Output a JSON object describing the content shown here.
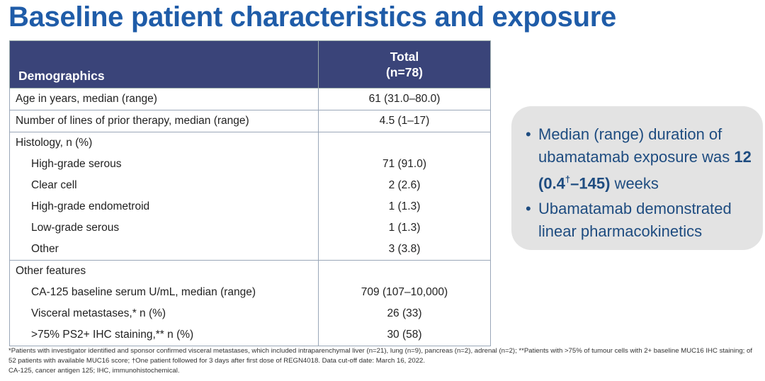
{
  "title": "Baseline patient characteristics and exposure",
  "table": {
    "header": {
      "col1": "Demographics",
      "col2_line1": "Total",
      "col2_line2": "(n=78)"
    },
    "rows": [
      {
        "label": "Age in years, median (range)",
        "value": "61 (31.0–80.0)",
        "group_start": true,
        "indent": false
      },
      {
        "label": "Number of lines of prior therapy, median (range)",
        "value": "4.5 (1–17)",
        "group_start": true,
        "indent": false
      },
      {
        "label": "Histology, n (%)",
        "value": "",
        "group_start": true,
        "indent": false
      },
      {
        "label": "High-grade serous",
        "value": "71 (91.0)",
        "group_start": false,
        "indent": true
      },
      {
        "label": "Clear cell",
        "value": "2 (2.6)",
        "group_start": false,
        "indent": true
      },
      {
        "label": "High-grade endometroid",
        "value": "1 (1.3)",
        "group_start": false,
        "indent": true
      },
      {
        "label": "Low-grade serous",
        "value": "1 (1.3)",
        "group_start": false,
        "indent": true
      },
      {
        "label": "Other",
        "value": "3 (3.8)",
        "group_start": false,
        "indent": true
      },
      {
        "label": "Other features",
        "value": "",
        "group_start": true,
        "indent": false
      },
      {
        "label": "CA-125 baseline serum U/mL, median (range)",
        "value": "709 (107–10,000)",
        "group_start": false,
        "indent": true
      },
      {
        "label": "Visceral metastases,* n (%)",
        "value": "26 (33)",
        "group_start": false,
        "indent": true
      },
      {
        "label": ">75% PS2+ IHC staining,** n (%)",
        "value": "30 (58)",
        "group_start": false,
        "indent": true
      }
    ]
  },
  "callout": {
    "bullet1_pre": "Median (range) duration of ubamatamab exposure was ",
    "bullet1_bold": "12 (0.4",
    "bullet1_sup": "†",
    "bullet1_bold2": "–145)",
    "bullet1_post": " weeks",
    "bullet2": "Ubamatamab demonstrated linear pharmacokinetics"
  },
  "footnotes": {
    "line1": "*Patients with investigator identified and sponsor confirmed visceral metastases, which included intraparenchymal liver (n=21), lung (n=9), pancreas (n=2), adrenal (n=2); **Patients with >75% of tumour cells with 2+ baseline MUC16 IHC staining; of 52 patients with available MUC16 score; †One patient followed for 3 days after first dose of REGN4018. Data cut-off date: March 16, 2022.",
    "line2": "CA-125, cancer antigen 125; IHC, immunohistochemical."
  },
  "colors": {
    "title": "#1f5ca8",
    "header_bg": "#3a4479",
    "callout_bg": "#e3e3e3",
    "callout_text": "#1e4c80"
  }
}
